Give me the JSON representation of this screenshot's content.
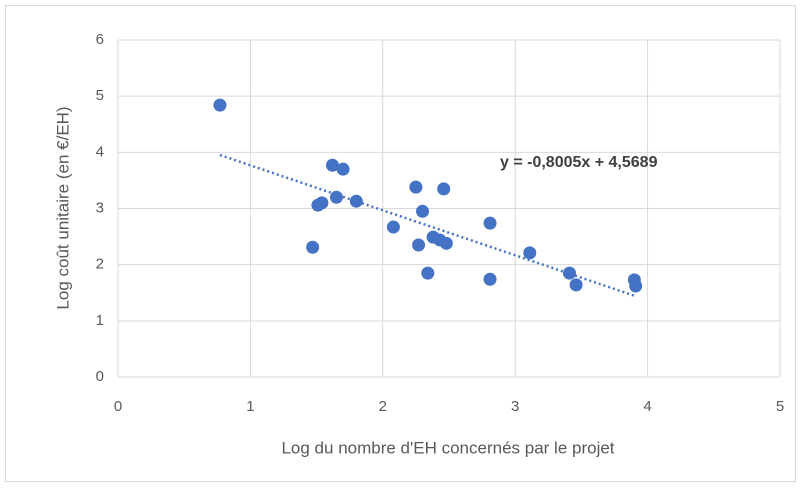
{
  "chart_data": {
    "type": "scatter",
    "x_label": "Log du nombre d'EH concernés par le projet",
    "y_label": "Log coût unitaire (en €/EH)",
    "x": [
      0.77,
      1.47,
      1.51,
      1.54,
      1.62,
      1.65,
      1.7,
      1.8,
      2.08,
      2.25,
      2.27,
      2.3,
      2.34,
      2.38,
      2.43,
      2.48,
      2.46,
      2.81,
      2.81,
      3.11,
      3.41,
      3.46,
      3.9,
      3.91
    ],
    "values": [
      4.84,
      2.31,
      3.06,
      3.1,
      3.77,
      3.2,
      3.7,
      3.13,
      2.67,
      3.38,
      2.35,
      2.95,
      1.85,
      2.49,
      2.44,
      2.38,
      3.35,
      2.74,
      1.74,
      2.21,
      1.85,
      1.64,
      1.73,
      1.62
    ],
    "color": "#4472c4",
    "xlim": [
      0,
      5
    ],
    "xticks": [
      0,
      1,
      2,
      3,
      4,
      5
    ],
    "ylim": [
      0,
      6
    ],
    "yticks": [
      0,
      1,
      2,
      3,
      4,
      5,
      6
    ],
    "grid": true,
    "trendline": {
      "slope": -0.8005,
      "intercept": 4.5689,
      "label": "y = -0,8005x + 4,5689"
    }
  }
}
